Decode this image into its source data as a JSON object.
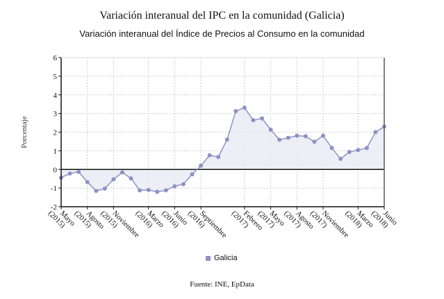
{
  "chart_data": {
    "type": "line",
    "title": "Variación interanual del IPC en la comunidad (Galicia)",
    "subtitle": "Variación interanual del Índice de Precios al Consumo en la comunidad",
    "ylabel": "Porcentaje",
    "xlabel": "",
    "ylim": [
      -2,
      6
    ],
    "yticks": [
      -2,
      -1,
      0,
      1,
      2,
      3,
      4,
      5,
      6
    ],
    "grid": true,
    "legend": "bottom",
    "series_color": "#8c93c4",
    "xtick_labels": [
      {
        "index": 0,
        "label": "Mayo",
        "year": "(2015)"
      },
      {
        "index": 3,
        "label": "Agosto",
        "year": "(2015)"
      },
      {
        "index": 6,
        "label": "Noviembre",
        "year": "(2015)"
      },
      {
        "index": 10,
        "label": "Marzo",
        "year": "(2016)"
      },
      {
        "index": 13,
        "label": "Junio",
        "year": "(2016)"
      },
      {
        "index": 16,
        "label": "Septiembre",
        "year": "(2016)"
      },
      {
        "index": 21,
        "label": "Febrero",
        "year": "(2017)"
      },
      {
        "index": 24,
        "label": "Mayo",
        "year": "(2017)"
      },
      {
        "index": 27,
        "label": "Agosto",
        "year": "(2017)"
      },
      {
        "index": 30,
        "label": "Noviembre",
        "year": "(2017)"
      },
      {
        "index": 34,
        "label": "Marzo",
        "year": "(2018)"
      },
      {
        "index": 37,
        "label": "Junio",
        "year": "(2018)"
      }
    ],
    "series": [
      {
        "name": "Galicia",
        "values": [
          -0.44,
          -0.22,
          -0.13,
          -0.68,
          -1.15,
          -1.03,
          -0.53,
          -0.16,
          -0.48,
          -1.12,
          -1.1,
          -1.2,
          -1.12,
          -0.9,
          -0.79,
          -0.26,
          0.2,
          0.76,
          0.67,
          1.6,
          3.13,
          3.31,
          2.64,
          2.74,
          2.13,
          1.59,
          1.7,
          1.81,
          1.78,
          1.49,
          1.81,
          1.16,
          0.57,
          0.94,
          1.04,
          1.15,
          2.0,
          2.3
        ]
      }
    ]
  },
  "source": "Fuente: INE, EpData"
}
